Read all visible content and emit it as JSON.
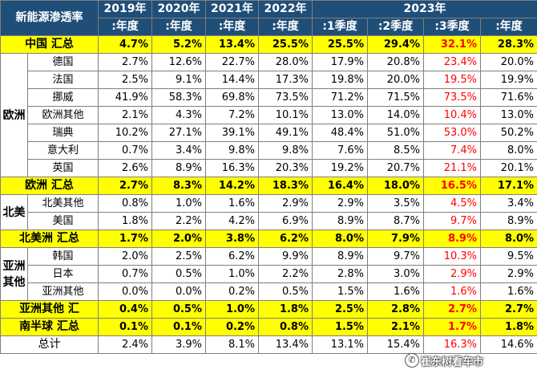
{
  "header": {
    "corner": "新能源渗透率",
    "years": [
      "2019年",
      "2020年",
      "2021年",
      "2022年",
      "2023年"
    ],
    "periods": [
      ":年度",
      ":年度",
      ":年度",
      ":年度",
      ":1季度",
      ":2季度",
      ":3季度",
      ":年度"
    ]
  },
  "rows": {
    "china": {
      "label": "中国 汇总",
      "values": [
        "4.7%",
        "5.2%",
        "13.4%",
        "25.5%",
        "25.5%",
        "29.4%",
        "32.1%",
        "28.3%"
      ]
    },
    "europe": {
      "group": "欧洲",
      "items": [
        {
          "label": "德国",
          "values": [
            "2.7%",
            "12.6%",
            "22.7%",
            "28.0%",
            "17.9%",
            "20.8%",
            "23.4%",
            "20.0%"
          ]
        },
        {
          "label": "法国",
          "values": [
            "2.5%",
            "9.1%",
            "14.4%",
            "17.3%",
            "19.8%",
            "20.0%",
            "19.5%",
            "19.9%"
          ]
        },
        {
          "label": "挪威",
          "values": [
            "41.9%",
            "58.3%",
            "69.8%",
            "73.5%",
            "71.2%",
            "71.5%",
            "73.5%",
            "71.6%"
          ]
        },
        {
          "label": "欧洲其他",
          "values": [
            "2.1%",
            "4.3%",
            "7.2%",
            "10.1%",
            "13.0%",
            "14.0%",
            "10.4%",
            "13.0%"
          ]
        },
        {
          "label": "瑞典",
          "values": [
            "10.2%",
            "27.1%",
            "39.1%",
            "49.1%",
            "48.4%",
            "51.0%",
            "53.0%",
            "50.2%"
          ]
        },
        {
          "label": "意大利",
          "values": [
            "0.7%",
            "3.4%",
            "9.8%",
            "9.8%",
            "7.6%",
            "8.5%",
            "7.4%",
            "8.0%"
          ]
        },
        {
          "label": "英国",
          "values": [
            "2.6%",
            "8.9%",
            "16.3%",
            "20.3%",
            "19.2%",
            "20.7%",
            "21.1%",
            "20.1%"
          ]
        }
      ],
      "total": {
        "label": "欧洲 汇总",
        "values": [
          "2.7%",
          "8.3%",
          "14.2%",
          "18.3%",
          "16.4%",
          "18.0%",
          "16.5%",
          "17.1%"
        ]
      }
    },
    "north_america": {
      "group": "北美",
      "items": [
        {
          "label": "北美其他",
          "values": [
            "0.8%",
            "1.0%",
            "1.6%",
            "2.9%",
            "2.9%",
            "3.5%",
            "4.5%",
            "3.4%"
          ]
        },
        {
          "label": "美国",
          "values": [
            "1.8%",
            "2.2%",
            "4.2%",
            "6.9%",
            "8.9%",
            "8.7%",
            "9.7%",
            "8.9%"
          ]
        }
      ],
      "total": {
        "label": "北美洲 汇总",
        "values": [
          "1.7%",
          "2.0%",
          "3.8%",
          "6.2%",
          "8.0%",
          "7.9%",
          "8.9%",
          "8.0%"
        ]
      }
    },
    "asia_other": {
      "group": "亚洲其他",
      "items": [
        {
          "label": "韩国",
          "values": [
            "2.0%",
            "2.5%",
            "6.2%",
            "9.9%",
            "8.9%",
            "9.7%",
            "10.3%",
            "9.5%"
          ]
        },
        {
          "label": "日本",
          "values": [
            "0.7%",
            "0.5%",
            "1.0%",
            "2.2%",
            "2.8%",
            "3.0%",
            "2.9%",
            "2.9%"
          ]
        },
        {
          "label": "亚洲其他",
          "values": [
            "0.0%",
            "0.0%",
            "0.2%",
            "0.5%",
            "1.5%",
            "1.6%",
            "1.6%",
            "1.6%"
          ]
        }
      ],
      "total": {
        "label": "亚洲其他 汇",
        "values": [
          "0.4%",
          "0.5%",
          "1.0%",
          "1.8%",
          "2.5%",
          "2.8%",
          "2.7%",
          "2.7%"
        ]
      }
    },
    "southern": {
      "label": "南半球 汇总",
      "values": [
        "0.1%",
        "0.1%",
        "0.2%",
        "0.8%",
        "1.5%",
        "2.1%",
        "1.7%",
        "1.8%"
      ]
    },
    "grand_total": {
      "label": "总计",
      "values": [
        "2.4%",
        "3.9%",
        "8.1%",
        "13.4%",
        "13.1%",
        "15.4%",
        "16.3%",
        "14.6%"
      ]
    }
  },
  "highlight_color": "#ff0000",
  "watermark": {
    "icon": "wechat-icon",
    "text": "崔东树看车市"
  }
}
